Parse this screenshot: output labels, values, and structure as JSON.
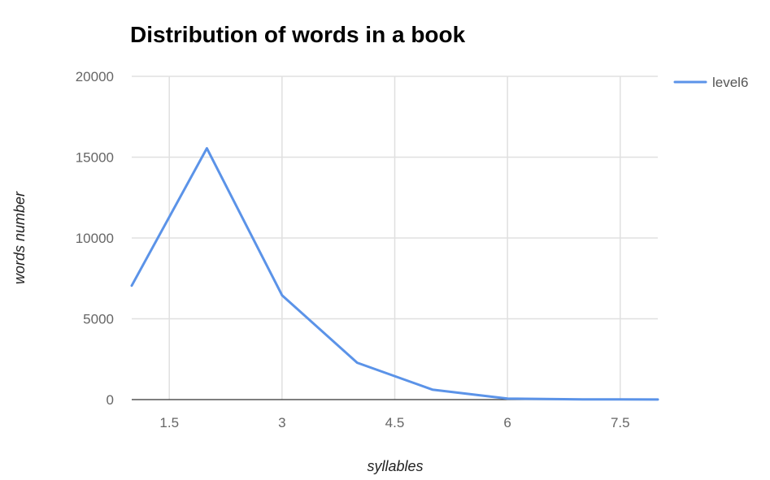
{
  "chart_data": {
    "type": "line",
    "title": "Distribution of words in a book",
    "xlabel": "syllables",
    "ylabel": "words number",
    "xlim": [
      1,
      8
    ],
    "ylim": [
      0,
      20000
    ],
    "x_ticks": [
      1.5,
      3,
      4.5,
      6,
      7.5
    ],
    "y_ticks": [
      0,
      5000,
      10000,
      15000,
      20000
    ],
    "grid": true,
    "legend": {
      "position": "right"
    },
    "series": [
      {
        "name": "level6",
        "color": "#5b93e8",
        "x": [
          1,
          2,
          3,
          4,
          5,
          6,
          7,
          8
        ],
        "values": [
          7050,
          15550,
          6450,
          2280,
          620,
          60,
          15,
          5
        ]
      }
    ]
  }
}
